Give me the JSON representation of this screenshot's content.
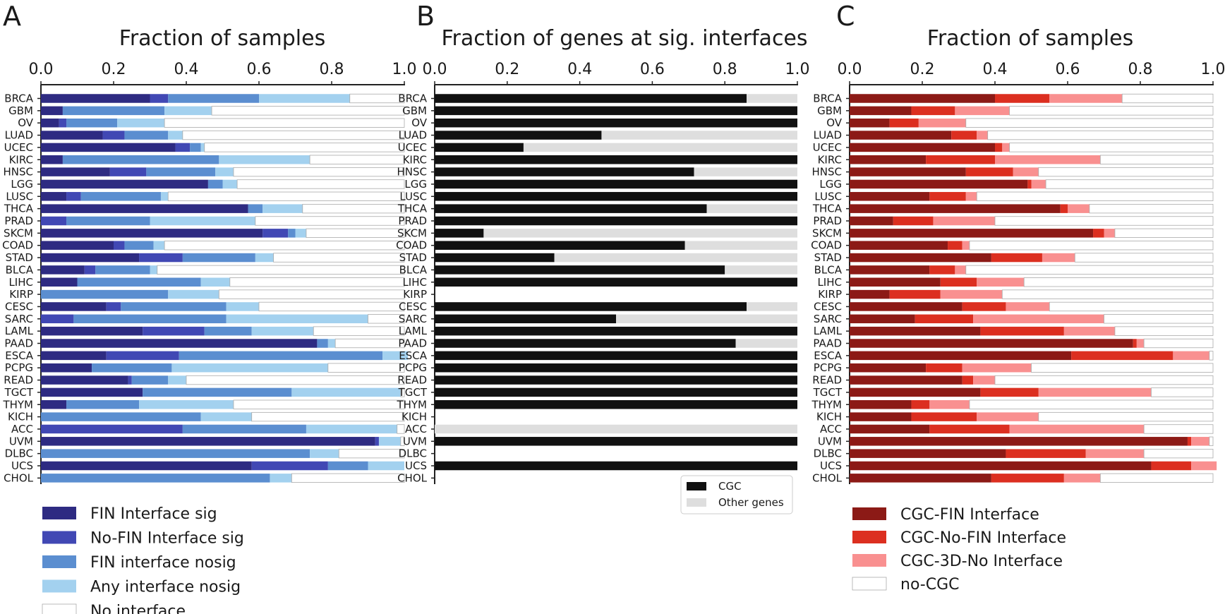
{
  "categories": [
    "BRCA",
    "GBM",
    "OV",
    "LUAD",
    "UCEC",
    "KIRC",
    "HNSC",
    "LGG",
    "LUSC",
    "THCA",
    "PRAD",
    "SKCM",
    "COAD",
    "STAD",
    "BLCA",
    "LIHC",
    "KIRP",
    "CESC",
    "SARC",
    "LAML",
    "PAAD",
    "ESCA",
    "PCPG",
    "READ",
    "TGCT",
    "THYM",
    "KICH",
    "ACC",
    "UVM",
    "DLBC",
    "UCS",
    "CHOL"
  ],
  "chart_data": [
    {
      "type": "bar",
      "orientation": "horizontal",
      "stacked": true,
      "panel_letter": "A",
      "title": "Fraction of samples",
      "xlim": [
        0,
        1
      ],
      "xticks": [
        "0.0",
        "0.2",
        "0.4",
        "0.6",
        "0.8",
        "1.0"
      ],
      "legend_position": "bottom",
      "series": [
        {
          "name": "FIN Interface sig",
          "color": "#2e2b82",
          "values": [
            0.3,
            0.06,
            0.05,
            0.17,
            0.37,
            0.06,
            0.19,
            0.46,
            0.07,
            0.57,
            0.0,
            0.61,
            0.2,
            0.27,
            0.12,
            0.1,
            0.0,
            0.18,
            0.0,
            0.28,
            0.76,
            0.18,
            0.14,
            0.24,
            0.28,
            0.07,
            0.0,
            0.0,
            0.92,
            0.0,
            0.58,
            0.0
          ]
        },
        {
          "name": "No-FIN Interface sig",
          "color": "#4148b4",
          "values": [
            0.05,
            0.0,
            0.02,
            0.06,
            0.04,
            0.0,
            0.1,
            0.0,
            0.04,
            0.0,
            0.07,
            0.07,
            0.03,
            0.12,
            0.03,
            0.0,
            0.0,
            0.04,
            0.09,
            0.17,
            0.0,
            0.2,
            0.0,
            0.01,
            0.0,
            0.0,
            0.0,
            0.39,
            0.01,
            0.0,
            0.21,
            0.0
          ]
        },
        {
          "name": "FIN interface nosig",
          "color": "#5b8ed0",
          "values": [
            0.25,
            0.28,
            0.14,
            0.12,
            0.03,
            0.43,
            0.19,
            0.04,
            0.22,
            0.04,
            0.23,
            0.02,
            0.08,
            0.2,
            0.15,
            0.34,
            0.35,
            0.29,
            0.42,
            0.13,
            0.03,
            0.56,
            0.22,
            0.1,
            0.41,
            0.2,
            0.44,
            0.34,
            0.0,
            0.74,
            0.11,
            0.63
          ]
        },
        {
          "name": "Any interface nosig",
          "color": "#a3d1ef",
          "values": [
            0.25,
            0.13,
            0.13,
            0.04,
            0.01,
            0.25,
            0.05,
            0.04,
            0.02,
            0.11,
            0.29,
            0.03,
            0.03,
            0.05,
            0.02,
            0.08,
            0.14,
            0.09,
            0.39,
            0.17,
            0.02,
            0.07,
            0.43,
            0.05,
            0.3,
            0.26,
            0.14,
            0.25,
            0.06,
            0.08,
            0.1,
            0.06
          ]
        },
        {
          "name": "No interface",
          "color": "#ffffff",
          "stroke": "#aaaaaa",
          "values": [
            0.15,
            0.53,
            0.66,
            0.61,
            0.55,
            0.26,
            0.47,
            0.46,
            0.65,
            0.28,
            0.41,
            0.27,
            0.66,
            0.36,
            0.68,
            0.48,
            0.51,
            0.4,
            0.1,
            0.25,
            0.19,
            0.0,
            0.21,
            0.6,
            0.01,
            0.47,
            0.42,
            0.02,
            0.01,
            0.18,
            0.0,
            0.31
          ]
        }
      ]
    },
    {
      "type": "bar",
      "orientation": "horizontal",
      "stacked": true,
      "panel_letter": "B",
      "title": "Fraction of genes at sig. interfaces",
      "xlim": [
        0,
        1
      ],
      "xticks": [
        "0.0",
        "0.2",
        "0.4",
        "0.6",
        "0.8",
        "1.0"
      ],
      "legend_position": "bottom-right",
      "series": [
        {
          "name": "CGC",
          "color": "#111111",
          "values": [
            0.86,
            1.0,
            1.0,
            0.46,
            0.245,
            1.0,
            0.715,
            1.0,
            1.0,
            0.75,
            1.0,
            0.135,
            0.69,
            0.33,
            0.8,
            1.0,
            null,
            0.86,
            0.5,
            1.0,
            0.83,
            1.0,
            1.0,
            1.0,
            1.0,
            1.0,
            null,
            0.0,
            1.0,
            null,
            1.0,
            null
          ]
        },
        {
          "name": "Other genes",
          "color": "#dedede",
          "values": [
            0.14,
            0.0,
            0.0,
            0.54,
            0.755,
            0.0,
            0.285,
            0.0,
            0.0,
            0.25,
            0.0,
            0.865,
            0.31,
            0.67,
            0.2,
            0.0,
            null,
            0.14,
            0.5,
            0.0,
            0.17,
            0.0,
            0.0,
            0.0,
            0.0,
            0.0,
            null,
            1.0,
            0.0,
            null,
            0.0,
            null
          ]
        }
      ]
    },
    {
      "type": "bar",
      "orientation": "horizontal",
      "stacked": true,
      "panel_letter": "C",
      "title": "Fraction of samples",
      "xlim": [
        0,
        1
      ],
      "xticks": [
        "0.0",
        "0.2",
        "0.4",
        "0.6",
        "0.8",
        "1.0"
      ],
      "legend_position": "bottom",
      "series": [
        {
          "name": "CGC-FIN Interface",
          "color": "#8c1a16",
          "values": [
            0.4,
            0.17,
            0.11,
            0.28,
            0.4,
            0.21,
            0.32,
            0.49,
            0.22,
            0.58,
            0.12,
            0.67,
            0.27,
            0.39,
            0.22,
            0.25,
            0.11,
            0.31,
            0.18,
            0.36,
            0.78,
            0.61,
            0.21,
            0.31,
            0.36,
            0.17,
            0.17,
            0.22,
            0.93,
            0.43,
            0.83,
            0.39
          ]
        },
        {
          "name": "CGC-No-FIN Interface",
          "color": "#dc2f20",
          "values": [
            0.15,
            0.12,
            0.08,
            0.07,
            0.02,
            0.19,
            0.13,
            0.01,
            0.1,
            0.02,
            0.11,
            0.03,
            0.04,
            0.14,
            0.07,
            0.1,
            0.14,
            0.12,
            0.16,
            0.23,
            0.01,
            0.28,
            0.1,
            0.03,
            0.16,
            0.05,
            0.18,
            0.22,
            0.01,
            0.22,
            0.11,
            0.2
          ]
        },
        {
          "name": "CGC-3D-No Interface",
          "color": "#f99090",
          "values": [
            0.2,
            0.15,
            0.13,
            0.03,
            0.02,
            0.29,
            0.07,
            0.04,
            0.03,
            0.06,
            0.17,
            0.03,
            0.02,
            0.09,
            0.03,
            0.13,
            0.17,
            0.12,
            0.36,
            0.14,
            0.02,
            0.1,
            0.19,
            0.06,
            0.31,
            0.11,
            0.17,
            0.37,
            0.05,
            0.16,
            0.07,
            0.1
          ]
        },
        {
          "name": "no-CGC",
          "color": "#ffffff",
          "stroke": "#aaaaaa",
          "values": [
            0.25,
            0.56,
            0.68,
            0.62,
            0.56,
            0.31,
            0.48,
            0.46,
            0.65,
            0.34,
            0.6,
            0.27,
            0.67,
            0.38,
            0.68,
            0.52,
            0.58,
            0.45,
            0.3,
            0.27,
            0.19,
            0.01,
            0.5,
            0.6,
            0.17,
            0.67,
            0.48,
            0.19,
            0.01,
            0.19,
            0.0,
            0.31
          ]
        }
      ]
    }
  ]
}
